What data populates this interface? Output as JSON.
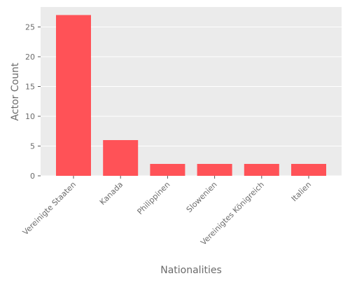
{
  "chart_data": {
    "type": "bar",
    "title": "",
    "xlabel": "Nationalities",
    "ylabel": "Actor Count",
    "categories": [
      "Vereinigte Staaten",
      "Kanada",
      "Philippinen",
      "Slowenien",
      "Vereinigtes Königreich",
      "Italien"
    ],
    "values": [
      27,
      6,
      2,
      2,
      2,
      2
    ],
    "ylim": [
      0,
      28.35
    ],
    "yticks": [
      0,
      5,
      10,
      15,
      20,
      25
    ],
    "grid": true,
    "legend": "none",
    "colors": {
      "bar": "#ff5257",
      "plot_background": "#ebebeb",
      "grid": "#ffffff",
      "text": "#6b6b6b"
    }
  }
}
